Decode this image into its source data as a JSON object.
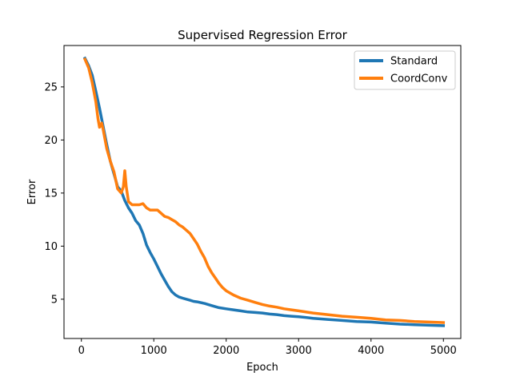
{
  "chart_data": {
    "type": "line",
    "title": "Supervised Regression Error",
    "xlabel": "Epoch",
    "ylabel": "Error",
    "xlim": [
      -240,
      5240
    ],
    "ylim": [
      1.3,
      28.9
    ],
    "xticks": [
      0,
      1000,
      2000,
      3000,
      4000,
      5000
    ],
    "yticks": [
      5,
      10,
      15,
      20,
      25
    ],
    "grid": false,
    "legend_position": "top-right",
    "series": [
      {
        "name": "Standard",
        "color": "#1f77b4",
        "x": [
          50,
          100,
          150,
          200,
          250,
          300,
          350,
          400,
          450,
          500,
          550,
          600,
          650,
          700,
          750,
          800,
          850,
          900,
          950,
          1000,
          1050,
          1100,
          1150,
          1200,
          1250,
          1300,
          1350,
          1400,
          1450,
          1500,
          1550,
          1600,
          1700,
          1800,
          1900,
          2000,
          2100,
          2200,
          2300,
          2400,
          2500,
          2600,
          2700,
          2800,
          2900,
          3000,
          3200,
          3400,
          3600,
          3800,
          4000,
          4200,
          4400,
          4600,
          4800,
          5000
        ],
        "y": [
          27.7,
          27.0,
          26.1,
          24.6,
          23.0,
          21.3,
          19.6,
          18.0,
          16.8,
          15.6,
          15.2,
          14.3,
          13.6,
          13.1,
          12.4,
          12.0,
          11.2,
          10.1,
          9.4,
          8.8,
          8.1,
          7.4,
          6.8,
          6.2,
          5.7,
          5.4,
          5.2,
          5.1,
          5.0,
          4.9,
          4.8,
          4.75,
          4.6,
          4.4,
          4.2,
          4.1,
          4.0,
          3.9,
          3.8,
          3.75,
          3.7,
          3.6,
          3.55,
          3.45,
          3.4,
          3.35,
          3.2,
          3.1,
          3.0,
          2.9,
          2.85,
          2.75,
          2.65,
          2.6,
          2.55,
          2.5
        ]
      },
      {
        "name": "CoordConv",
        "color": "#ff7f0e",
        "x": [
          50,
          100,
          150,
          200,
          230,
          250,
          280,
          300,
          350,
          400,
          450,
          500,
          550,
          580,
          600,
          620,
          650,
          700,
          750,
          800,
          850,
          900,
          950,
          1000,
          1050,
          1100,
          1150,
          1200,
          1250,
          1300,
          1350,
          1400,
          1450,
          1500,
          1550,
          1600,
          1650,
          1700,
          1750,
          1800,
          1850,
          1900,
          1950,
          2000,
          2100,
          2200,
          2300,
          2400,
          2500,
          2600,
          2700,
          2800,
          2900,
          3000,
          3200,
          3400,
          3600,
          3800,
          4000,
          4200,
          4400,
          4600,
          4800,
          5000
        ],
        "y": [
          27.6,
          26.8,
          25.4,
          23.6,
          22.0,
          21.2,
          21.6,
          21.0,
          19.2,
          18.0,
          17.0,
          15.4,
          15.0,
          15.6,
          17.1,
          15.6,
          14.2,
          13.9,
          13.9,
          13.9,
          14.0,
          13.6,
          13.4,
          13.4,
          13.4,
          13.1,
          12.8,
          12.7,
          12.5,
          12.3,
          12.0,
          11.8,
          11.5,
          11.2,
          10.7,
          10.2,
          9.5,
          8.9,
          8.1,
          7.5,
          7.0,
          6.5,
          6.1,
          5.8,
          5.4,
          5.1,
          4.9,
          4.7,
          4.5,
          4.35,
          4.25,
          4.1,
          4.0,
          3.9,
          3.7,
          3.55,
          3.4,
          3.3,
          3.2,
          3.05,
          3.0,
          2.9,
          2.85,
          2.8
        ]
      }
    ]
  }
}
